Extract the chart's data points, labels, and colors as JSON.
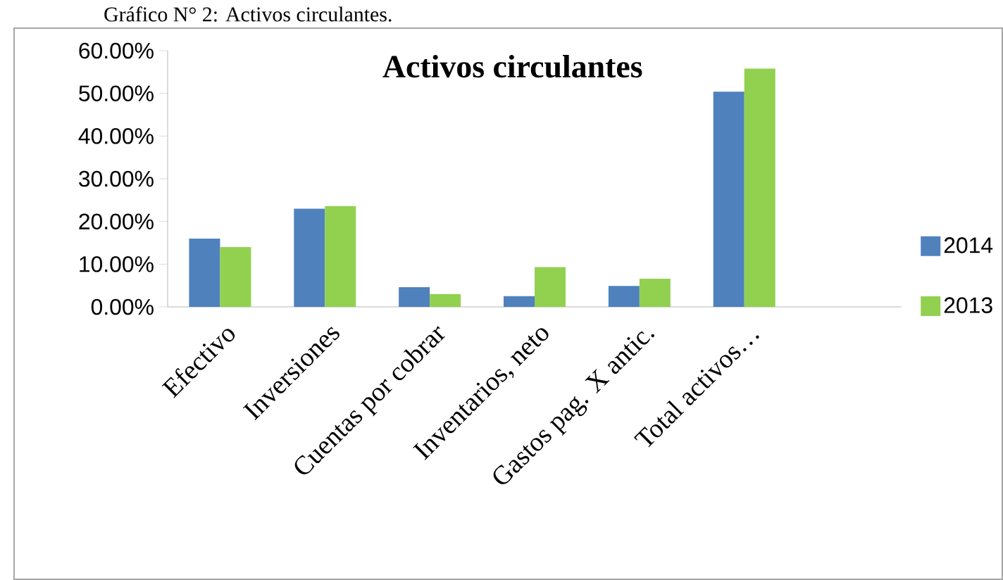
{
  "chart_data": {
    "type": "bar",
    "title": "Activos circulantes",
    "annotations": [
      "Gráfico N° 2: Activos circulantes."
    ],
    "categories": [
      "Efectivo",
      "Inversiones",
      "Cuentas por cobrar",
      "Inventarios, neto",
      "Gastos pag. X antic.",
      "Total activos…",
      null
    ],
    "series": [
      {
        "name": "2014",
        "color": "#4f81bd",
        "values": [
          16.0,
          23.0,
          4.6,
          2.5,
          4.9,
          50.4,
          null
        ]
      },
      {
        "name": "2013",
        "color": "#92d050",
        "values": [
          14.0,
          23.6,
          3.0,
          9.3,
          6.6,
          55.8,
          null
        ]
      }
    ],
    "ylim": [
      0,
      60
    ],
    "yticks": [
      {
        "value": 0,
        "label": "0.00%"
      },
      {
        "value": 10,
        "label": "10.00%"
      },
      {
        "value": 20,
        "label": "20.00%"
      },
      {
        "value": 30,
        "label": "30.00%"
      },
      {
        "value": 40,
        "label": "40.00%"
      },
      {
        "value": 50,
        "label": "50.00%"
      },
      {
        "value": 60,
        "label": "60.00%"
      }
    ],
    "legend": "right",
    "grid": false
  }
}
